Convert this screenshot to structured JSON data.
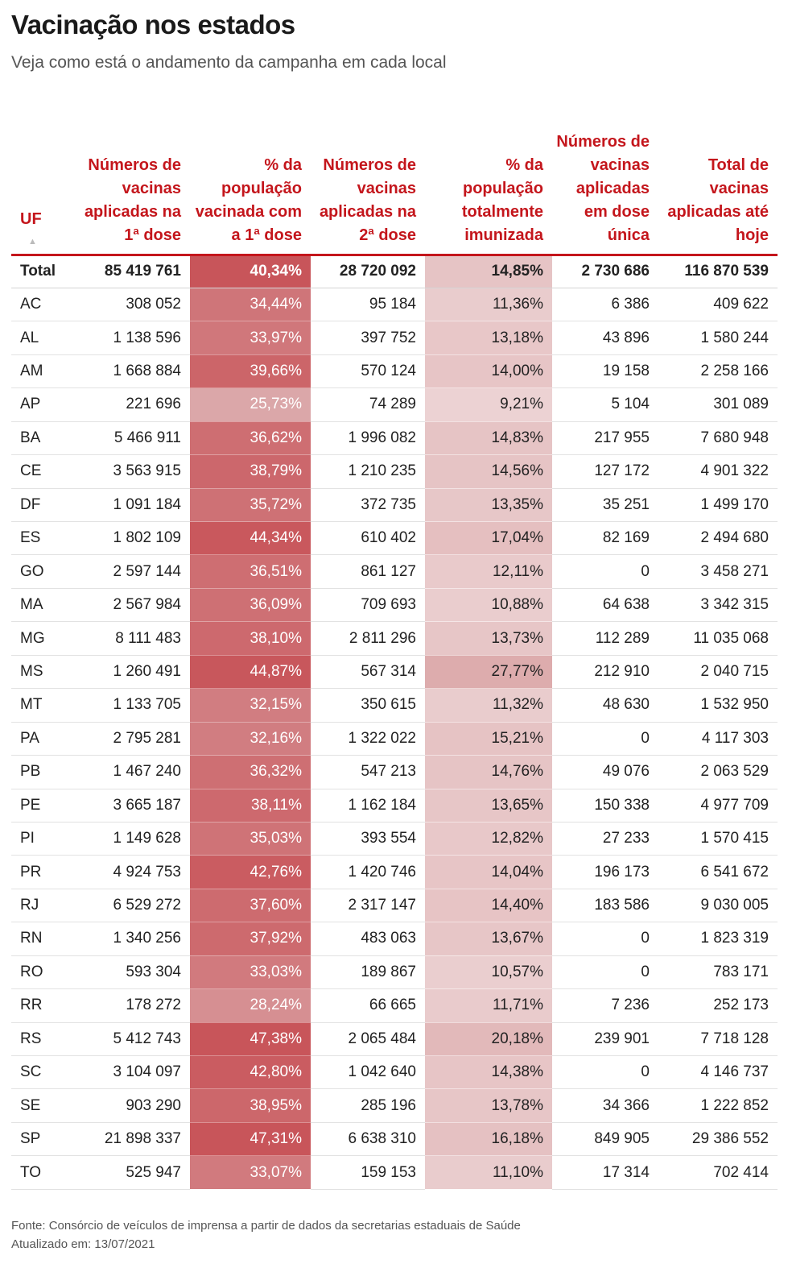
{
  "header": {
    "title": "Vacinação nos estados",
    "subtitle": "Veja como está o andamento da campanha em cada local"
  },
  "chart_data": {
    "type": "table",
    "columns": [
      "UF",
      "Números de vacinas aplicadas na 1ª dose",
      "% da população vacinada com a 1ª dose",
      "Números de vacinas aplicadas na 2ª dose",
      "% da população totalmente imunizada",
      "Números de vacinas aplicadas em dose única",
      "Total de vacinas aplicadas até hoje"
    ],
    "sort_indicator": "▲",
    "total": [
      "Total",
      "85 419 761",
      "40,34%",
      "28 720 092",
      "14,85%",
      "2 730 686",
      "116 870 539"
    ],
    "rows": [
      [
        "AC",
        "308 052",
        "34,44%",
        "95 184",
        "11,36%",
        "6 386",
        "409 622"
      ],
      [
        "AL",
        "1 138 596",
        "33,97%",
        "397 752",
        "13,18%",
        "43 896",
        "1 580 244"
      ],
      [
        "AM",
        "1 668 884",
        "39,66%",
        "570 124",
        "14,00%",
        "19 158",
        "2 258 166"
      ],
      [
        "AP",
        "221 696",
        "25,73%",
        "74 289",
        "9,21%",
        "5 104",
        "301 089"
      ],
      [
        "BA",
        "5 466 911",
        "36,62%",
        "1 996 082",
        "14,83%",
        "217 955",
        "7 680 948"
      ],
      [
        "CE",
        "3 563 915",
        "38,79%",
        "1 210 235",
        "14,56%",
        "127 172",
        "4 901 322"
      ],
      [
        "DF",
        "1 091 184",
        "35,72%",
        "372 735",
        "13,35%",
        "35 251",
        "1 499 170"
      ],
      [
        "ES",
        "1 802 109",
        "44,34%",
        "610 402",
        "17,04%",
        "82 169",
        "2 494 680"
      ],
      [
        "GO",
        "2 597 144",
        "36,51%",
        "861 127",
        "12,11%",
        "0",
        "3 458 271"
      ],
      [
        "MA",
        "2 567 984",
        "36,09%",
        "709 693",
        "10,88%",
        "64 638",
        "3 342 315"
      ],
      [
        "MG",
        "8 111 483",
        "38,10%",
        "2 811 296",
        "13,73%",
        "112 289",
        "11 035 068"
      ],
      [
        "MS",
        "1 260 491",
        "44,87%",
        "567 314",
        "27,77%",
        "212 910",
        "2 040 715"
      ],
      [
        "MT",
        "1 133 705",
        "32,15%",
        "350 615",
        "11,32%",
        "48 630",
        "1 532 950"
      ],
      [
        "PA",
        "2 795 281",
        "32,16%",
        "1 322 022",
        "15,21%",
        "0",
        "4 117 303"
      ],
      [
        "PB",
        "1 467 240",
        "36,32%",
        "547 213",
        "14,76%",
        "49 076",
        "2 063 529"
      ],
      [
        "PE",
        "3 665 187",
        "38,11%",
        "1 162 184",
        "13,65%",
        "150 338",
        "4 977 709"
      ],
      [
        "PI",
        "1 149 628",
        "35,03%",
        "393 554",
        "12,82%",
        "27 233",
        "1 570 415"
      ],
      [
        "PR",
        "4 924 753",
        "42,76%",
        "1 420 746",
        "14,04%",
        "196 173",
        "6 541 672"
      ],
      [
        "RJ",
        "6 529 272",
        "37,60%",
        "2 317 147",
        "14,40%",
        "183 586",
        "9 030 005"
      ],
      [
        "RN",
        "1 340 256",
        "37,92%",
        "483 063",
        "13,67%",
        "0",
        "1 823 319"
      ],
      [
        "RO",
        "593 304",
        "33,03%",
        "189 867",
        "10,57%",
        "0",
        "783 171"
      ],
      [
        "RR",
        "178 272",
        "28,24%",
        "66 665",
        "11,71%",
        "7 236",
        "252 173"
      ],
      [
        "RS",
        "5 412 743",
        "47,38%",
        "2 065 484",
        "20,18%",
        "239 901",
        "7 718 128"
      ],
      [
        "SC",
        "3 104 097",
        "42,80%",
        "1 042 640",
        "14,38%",
        "0",
        "4 146 737"
      ],
      [
        "SE",
        "903 290",
        "38,95%",
        "285 196",
        "13,78%",
        "34 366",
        "1 222 852"
      ],
      [
        "SP",
        "21 898 337",
        "47,31%",
        "6 638 310",
        "16,18%",
        "849 905",
        "29 386 552"
      ],
      [
        "TO",
        "525 947",
        "33,07%",
        "159 153",
        "11,10%",
        "17 314",
        "702 414"
      ]
    ],
    "colors": {
      "header_text": "#c4161c",
      "heat_dose1_low": "#dba7a9",
      "heat_dose1_high": "#c8555a",
      "heat_full_low": "#ecd3d4",
      "heat_full_high": "#dca8a9"
    }
  },
  "footer": {
    "source": "Fonte: Consórcio de veículos de imprensa a partir de dados da secretarias estaduais de Saúde",
    "updated": "Atualizado em: 13/07/2021"
  }
}
